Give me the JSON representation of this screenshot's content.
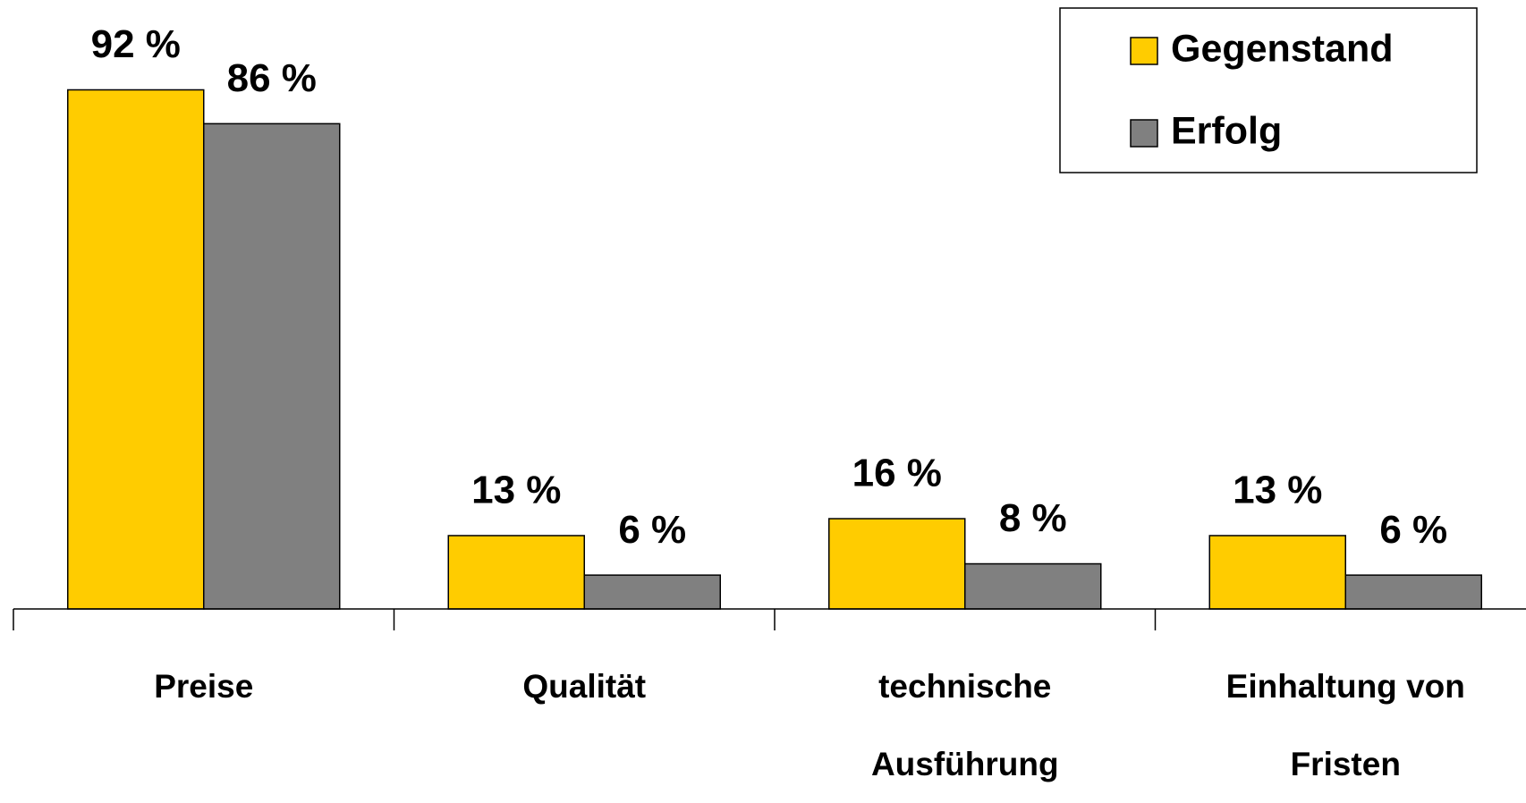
{
  "chart_data": {
    "type": "bar",
    "categories": [
      "Preise",
      "Qualität",
      "technische Ausführung",
      "Einhaltung von Fristen"
    ],
    "series": [
      {
        "name": "Gegenstand",
        "color": "#ffcc00",
        "values": [
          92,
          13,
          16,
          13
        ],
        "value_labels": [
          "92 %",
          "13 %",
          "16 %",
          "13 %"
        ]
      },
      {
        "name": "Erfolg",
        "color": "#808080",
        "values": [
          86,
          6,
          8,
          6
        ],
        "value_labels": [
          "86 %",
          "6 %",
          "8 %",
          "6 %"
        ]
      }
    ],
    "legend": "upper right"
  }
}
